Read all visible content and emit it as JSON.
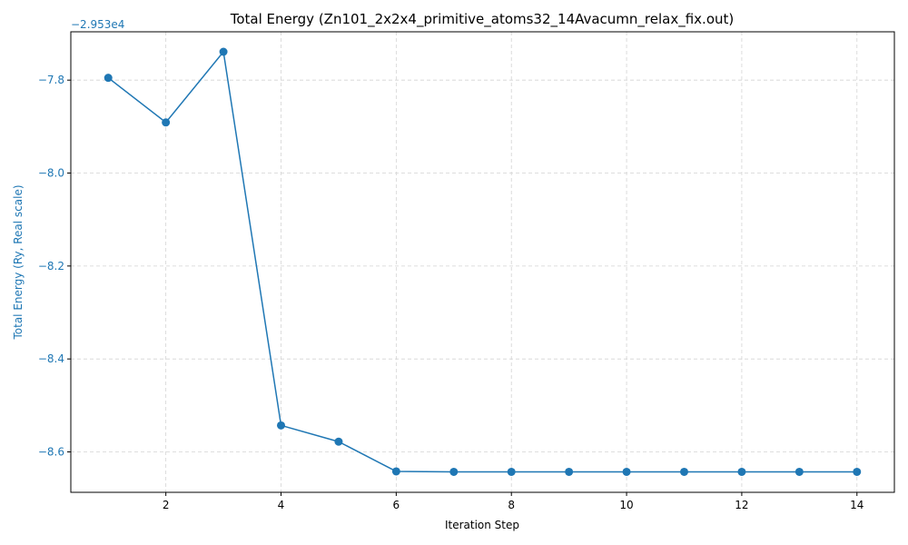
{
  "chart_data": {
    "type": "line",
    "title": "Total Energy (Zn101_2x2x4_primitive_atoms32_14Avacumn_relax_fix.out)",
    "xlabel": "Iteration Step",
    "ylabel": "Total Energy (Ry, Real scale)",
    "y_offset_label": "−2.953e4",
    "y_offset": -29530,
    "x_ticks": [
      2,
      4,
      6,
      8,
      10,
      12,
      14
    ],
    "x_tick_labels": [
      "2",
      "4",
      "6",
      "8",
      "10",
      "12",
      "14"
    ],
    "y_ticks": [
      -8.6,
      -8.4,
      -8.2,
      -8.0,
      -7.8
    ],
    "y_tick_labels": [
      "−8.6",
      "−8.4",
      "−8.2",
      "−8.0",
      "−7.8"
    ],
    "xlim": [
      0.35,
      14.65
    ],
    "ylim": [
      -8.687,
      -7.696
    ],
    "grid": true,
    "series": [
      {
        "color": "#1f77b4",
        "marker": "circle",
        "x": [
          1,
          2,
          3,
          4,
          5,
          6,
          7,
          8,
          9,
          10,
          11,
          12,
          13,
          14
        ],
        "y": [
          -7.795,
          -7.891,
          -7.739,
          -8.543,
          -8.578,
          -8.642,
          -8.643,
          -8.643,
          -8.643,
          -8.643,
          -8.643,
          -8.643,
          -8.643,
          -8.643
        ]
      }
    ]
  }
}
